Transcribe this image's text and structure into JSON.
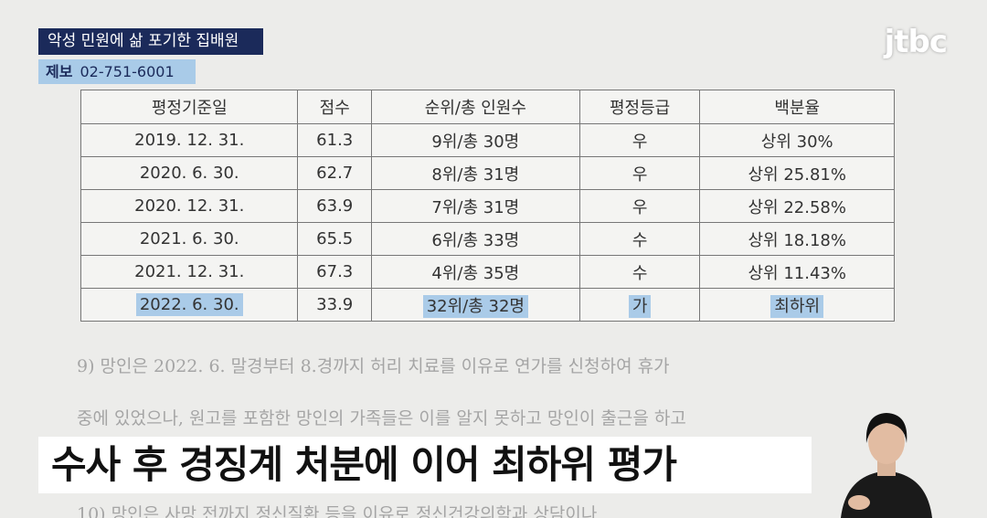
{
  "header": {
    "tag": "악성 민원에 삶 포기한 집배원",
    "tip_label": "제보",
    "tip_phone": "02-751-6001",
    "logo": "jtbc"
  },
  "table": {
    "columns": [
      "평정기준일",
      "점수",
      "순위/총 인원수",
      "평정등급",
      "백분율"
    ],
    "rows": [
      [
        "2019. 12. 31.",
        "61.3",
        "9위/총 30명",
        "우",
        "상위 30%"
      ],
      [
        "2020. 6. 30.",
        "62.7",
        "8위/총 31명",
        "우",
        "상위 25.81%"
      ],
      [
        "2020. 12. 31.",
        "63.9",
        "7위/총 31명",
        "우",
        "상위 22.58%"
      ],
      [
        "2021. 6. 30.",
        "65.5",
        "6위/총 33명",
        "수",
        "상위 18.18%"
      ],
      [
        "2021. 12. 31.",
        "67.3",
        "4위/총 35명",
        "수",
        "상위 11.43%"
      ],
      [
        "2022. 6. 30.",
        "33.9",
        "32위/총 32명",
        "가",
        "최하위"
      ]
    ]
  },
  "body": {
    "lines": [
      "9) 망인은 2022. 6. 말경부터 8.경까지 허리 치료를 이유로 연가를 신청하여 휴가",
      "중에 있었으나, 원고를 포함한 망인의 가족들은 이를 알지 못하고 망인이 출근을 하고",
      "10) 망인은 사망 전까지 정신질환 등을 이유로 정신건강의학과 상담이나"
    ]
  },
  "caption": "수사 후 경징계 처분에 이어 최하위 평가"
}
